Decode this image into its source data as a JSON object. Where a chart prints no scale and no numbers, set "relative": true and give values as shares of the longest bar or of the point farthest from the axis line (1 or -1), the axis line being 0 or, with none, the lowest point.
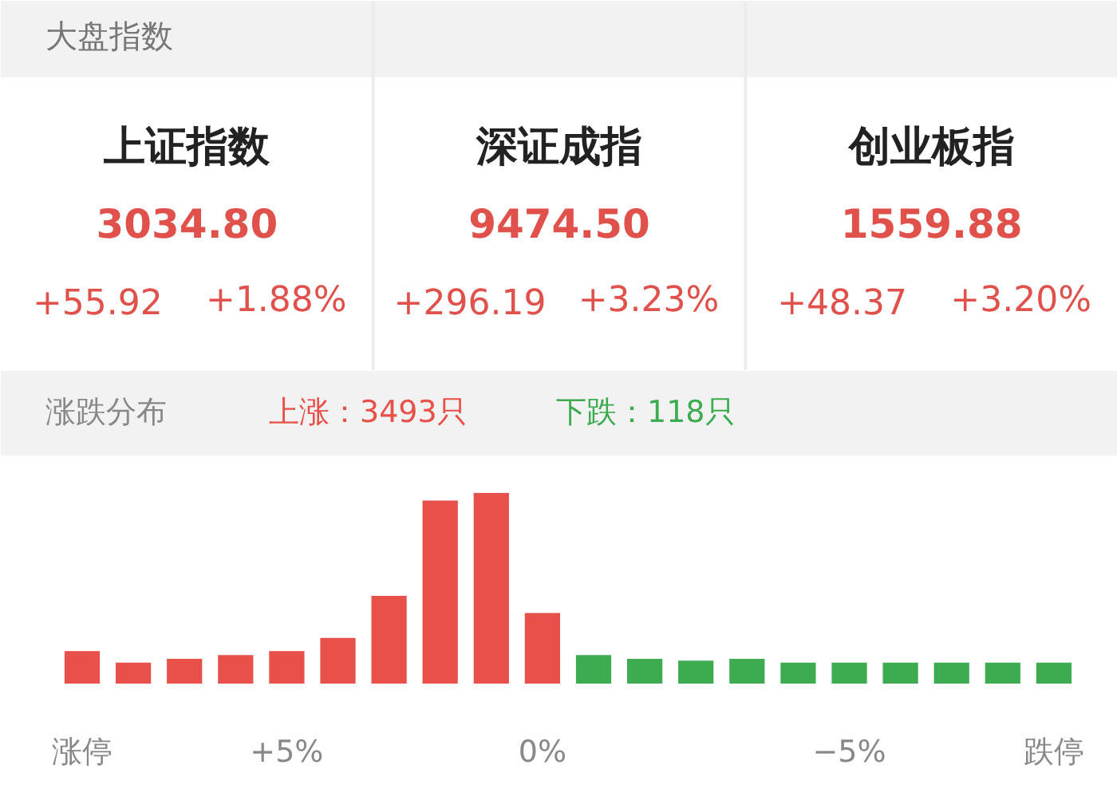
{
  "chart_data": [
    {
      "type": "other",
      "title": "大盘指数",
      "categories": [
        "上证指数",
        "深证成指",
        "创业板指"
      ],
      "value_labels": [
        "3034.80",
        "9474.50",
        "1559.88"
      ],
      "annotations": [
        "+55.92",
        "+1.88%",
        "+296.19",
        "+3.23%",
        "+48.37",
        "+3.20%"
      ],
      "color": "#e0514b"
    },
    {
      "type": "bar",
      "title": "涨跌分布",
      "relative": true,
      "legend": "top",
      "grid": false,
      "categories": [
        "涨停",
        null,
        null,
        null,
        "+5%",
        null,
        null,
        null,
        null,
        "0%",
        null,
        null,
        null,
        null,
        null,
        "−5%",
        null,
        null,
        null,
        "跌停"
      ],
      "series": [
        {
          "name": "上涨：3493只",
          "color": "#e8504a",
          "values": [
            0.17,
            0.11,
            0.13,
            0.15,
            0.17,
            0.24,
            0.46,
            0.96,
            1,
            0.37,
            null,
            null,
            null,
            null,
            null,
            null,
            null,
            null,
            null,
            null
          ]
        },
        {
          "name": "下跌：118只",
          "color": "#3dab4f",
          "values": [
            null,
            null,
            null,
            null,
            null,
            null,
            null,
            null,
            null,
            null,
            0.15,
            0.13,
            0.12,
            0.13,
            0.11,
            0.11,
            0.11,
            0.11,
            0.11,
            0.11
          ]
        }
      ]
    }
  ]
}
